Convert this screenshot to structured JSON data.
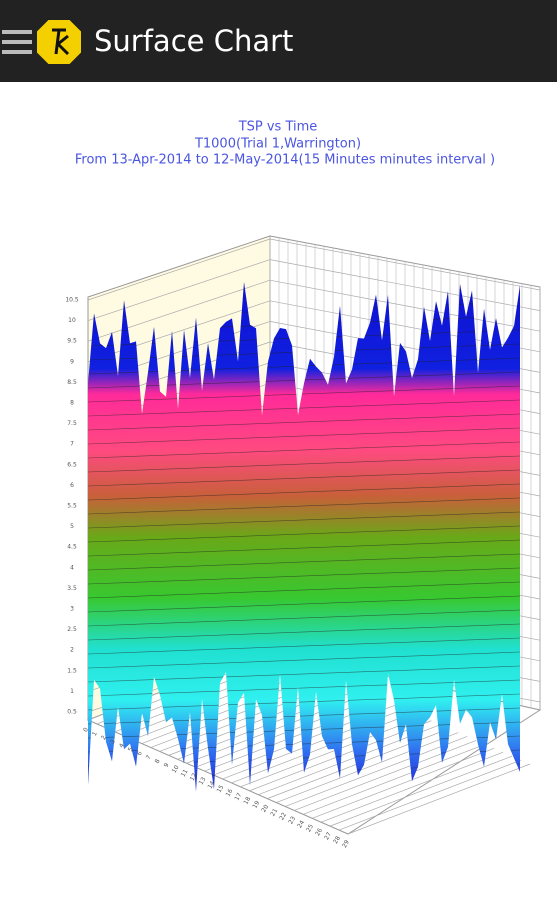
{
  "app_bar": {
    "title": "Surface Chart"
  },
  "chart_data": {
    "type": "surface",
    "title": "TSP vs Time",
    "subtitle": [
      "T1000(Trial 1,Warrington)",
      "From 13-Apr-2014 to 12-May-2014(15 Minutes minutes interval )"
    ],
    "ylim": [
      0.5,
      10.5
    ],
    "yticks": [
      0.5,
      1,
      1.5,
      2,
      2.5,
      3,
      3.5,
      4,
      4.5,
      5,
      5.5,
      6,
      6.5,
      7,
      7.5,
      8,
      8.5,
      9,
      9.5,
      10,
      10.5
    ],
    "xlim": [
      0,
      29
    ],
    "xticks": [
      0,
      1,
      2,
      3,
      4,
      5,
      6,
      7,
      8,
      9,
      10,
      11,
      12,
      13,
      14,
      15,
      16,
      17,
      18,
      19,
      20,
      21,
      22,
      23,
      24,
      25,
      26,
      27,
      28,
      29
    ]
  }
}
